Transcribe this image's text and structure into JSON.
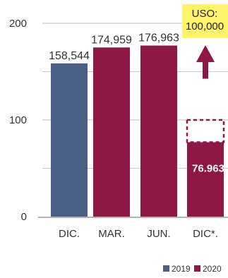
{
  "chart_data": {
    "type": "bar",
    "categories": [
      "DIC.",
      "MAR.",
      "JUN.",
      "DIC*."
    ],
    "values": [
      158544,
      174959,
      176963,
      76963
    ],
    "bar_value_labels": [
      "158,544",
      "174,959",
      "176,963",
      "76.963"
    ],
    "year_of_bar": [
      "2019",
      "2020",
      "2020",
      "2020"
    ],
    "y_scale_divisor": 1000,
    "yticks": [
      "0",
      "100",
      "200"
    ],
    "ylim": [
      0,
      200000
    ],
    "grid": true,
    "annotation": {
      "lines": [
        "USO:",
        "100,000"
      ],
      "target": 100000,
      "bar": "DIC*."
    },
    "legend": [
      {
        "name": "2019",
        "color": "#4a5f86"
      },
      {
        "name": "2020",
        "color": "#8e1744"
      }
    ],
    "legend_position": "bottom-right"
  },
  "colors": {
    "bar_2019": "#4a5f86",
    "bar_2020": "#8e1744",
    "annotation_bg": "#fff36b",
    "grid": "#c9c9c9"
  }
}
